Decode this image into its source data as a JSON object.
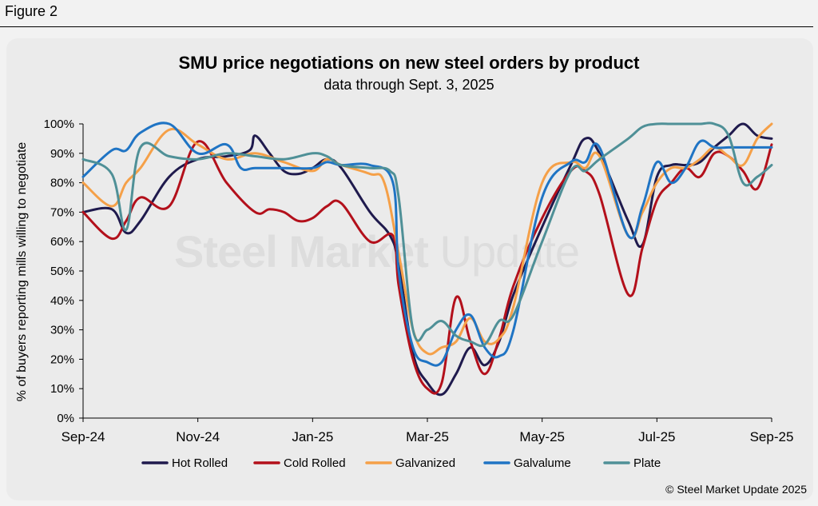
{
  "figure_label": "Figure 2",
  "copyright": "© Steel Market Update 2025",
  "watermark": {
    "bold": "Steel Market",
    "light": "Update"
  },
  "chart_data": {
    "type": "line",
    "title": "SMU price negotiations on new steel orders by product",
    "subtitle": "data through Sept. 3, 2025",
    "xlabel": "",
    "ylabel": "% of buyers reporting mills willing to negotiate",
    "ylim": [
      0,
      100
    ],
    "xlim": [
      0,
      24
    ],
    "yticks": [
      {
        "value": 0,
        "label": "0%"
      },
      {
        "value": 10,
        "label": "10%"
      },
      {
        "value": 20,
        "label": "20%"
      },
      {
        "value": 30,
        "label": "30%"
      },
      {
        "value": 40,
        "label": "40%"
      },
      {
        "value": 50,
        "label": "50%"
      },
      {
        "value": 60,
        "label": "60%"
      },
      {
        "value": 70,
        "label": "70%"
      },
      {
        "value": 80,
        "label": "80%"
      },
      {
        "value": 90,
        "label": "90%"
      },
      {
        "value": 100,
        "label": "100%"
      }
    ],
    "xticks": [
      {
        "value": 0,
        "label": "Sep-24"
      },
      {
        "value": 4,
        "label": "Nov-24"
      },
      {
        "value": 8,
        "label": "Jan-25"
      },
      {
        "value": 12,
        "label": "Mar-25"
      },
      {
        "value": 16,
        "label": "May-25"
      },
      {
        "value": 20,
        "label": "Jul-25"
      },
      {
        "value": 24,
        "label": "Sep-25"
      }
    ],
    "legend_position": "bottom",
    "series": [
      {
        "name": "Hot Rolled",
        "color": "#1f1a4d",
        "x": [
          0,
          1,
          1.5,
          2,
          3,
          4,
          5,
          5.8,
          6,
          6.5,
          7,
          7.5,
          8,
          8.5,
          9,
          10,
          10.7,
          11,
          11.5,
          12,
          12.5,
          13,
          13.5,
          14,
          14.5,
          15,
          16,
          17,
          17.5,
          18,
          19,
          19.5,
          20,
          20.5,
          21,
          21.5,
          22,
          22.5,
          23,
          23.5,
          24
        ],
        "y": [
          70,
          71,
          63,
          67,
          82,
          88,
          89,
          91,
          96,
          90,
          84,
          83,
          85,
          88,
          85,
          70,
          62,
          52,
          22,
          12,
          8,
          15,
          24,
          18,
          26,
          42,
          65,
          86,
          95,
          90,
          67,
          59,
          82,
          86,
          86,
          87,
          92,
          96,
          100,
          96,
          95
        ]
      },
      {
        "name": "Cold Rolled",
        "color": "#b3101b",
        "x": [
          0,
          1,
          1.5,
          2,
          3,
          4,
          5,
          6,
          6.5,
          7,
          7.5,
          8,
          8.5,
          9,
          10,
          10.8,
          11,
          11.5,
          12,
          12.5,
          13,
          13.5,
          14,
          14.5,
          15,
          16,
          17,
          17.5,
          18,
          19,
          19.5,
          20,
          20.5,
          21,
          21.5,
          22,
          22.5,
          23,
          23.5,
          24
        ],
        "y": [
          70,
          61,
          67,
          75,
          72,
          94,
          80,
          70,
          71,
          70,
          67,
          68,
          72,
          73,
          60,
          62,
          45,
          20,
          10,
          12,
          41,
          26,
          15,
          27,
          45,
          68,
          84,
          84,
          76,
          42,
          58,
          74,
          80,
          85,
          82,
          90,
          89,
          84,
          78,
          93
        ]
      },
      {
        "name": "Galvanized",
        "color": "#f5a048",
        "x": [
          0,
          1,
          1.5,
          2,
          3,
          4,
          5,
          6,
          7,
          8,
          8.5,
          9,
          10,
          10.5,
          11,
          11.5,
          12,
          12.5,
          13,
          13.5,
          14,
          14.5,
          15,
          16,
          17,
          17.5,
          18,
          19,
          19.5,
          20,
          20.5,
          21,
          21.5,
          22,
          22.5,
          23,
          23.5,
          24
        ],
        "y": [
          80,
          72,
          80,
          85,
          98,
          93,
          88,
          90,
          87,
          84,
          88,
          86,
          83,
          80,
          56,
          30,
          22,
          24,
          26,
          34,
          26,
          27,
          38,
          80,
          87,
          85,
          89,
          62,
          70,
          80,
          85,
          85,
          88,
          92,
          89,
          86,
          95,
          100
        ]
      },
      {
        "name": "Galvalume",
        "color": "#1f74c4",
        "x": [
          0,
          1,
          1.5,
          2,
          3,
          4,
          5,
          5.5,
          6,
          7,
          8,
          8.5,
          9,
          10,
          10.8,
          11,
          11.5,
          12,
          12.5,
          13,
          13.5,
          14,
          14.5,
          15,
          16,
          17,
          17.5,
          18,
          19,
          19.5,
          20,
          20.5,
          21,
          21.5,
          22,
          22.5,
          23,
          23.5,
          24
        ],
        "y": [
          82,
          91,
          91,
          97,
          100,
          90,
          93,
          85,
          85,
          85,
          85,
          87,
          86,
          86,
          80,
          50,
          24,
          19,
          19,
          30,
          35,
          24,
          21,
          30,
          75,
          87,
          87,
          92,
          62,
          72,
          87,
          80,
          85,
          94,
          92,
          92,
          92,
          92,
          92
        ]
      },
      {
        "name": "Plate",
        "color": "#4f9097",
        "x": [
          0,
          1,
          1.5,
          2,
          3,
          4,
          5,
          6,
          7,
          8,
          8.5,
          9,
          10,
          10.7,
          11,
          11.5,
          12,
          12.5,
          13,
          13.5,
          14,
          14.5,
          15,
          16,
          17,
          17.5,
          18,
          19,
          19.5,
          20,
          20.5,
          21,
          21.5,
          22,
          22.5,
          23,
          23.5,
          24
        ],
        "y": [
          88,
          83,
          64,
          92,
          89,
          88,
          90,
          89,
          88,
          90,
          89,
          86,
          85,
          84,
          75,
          30,
          30,
          33,
          28,
          26,
          25,
          33,
          35,
          60,
          84,
          84,
          88,
          95,
          99,
          100,
          100,
          100,
          100,
          100,
          96,
          80,
          82,
          86
        ]
      }
    ]
  }
}
